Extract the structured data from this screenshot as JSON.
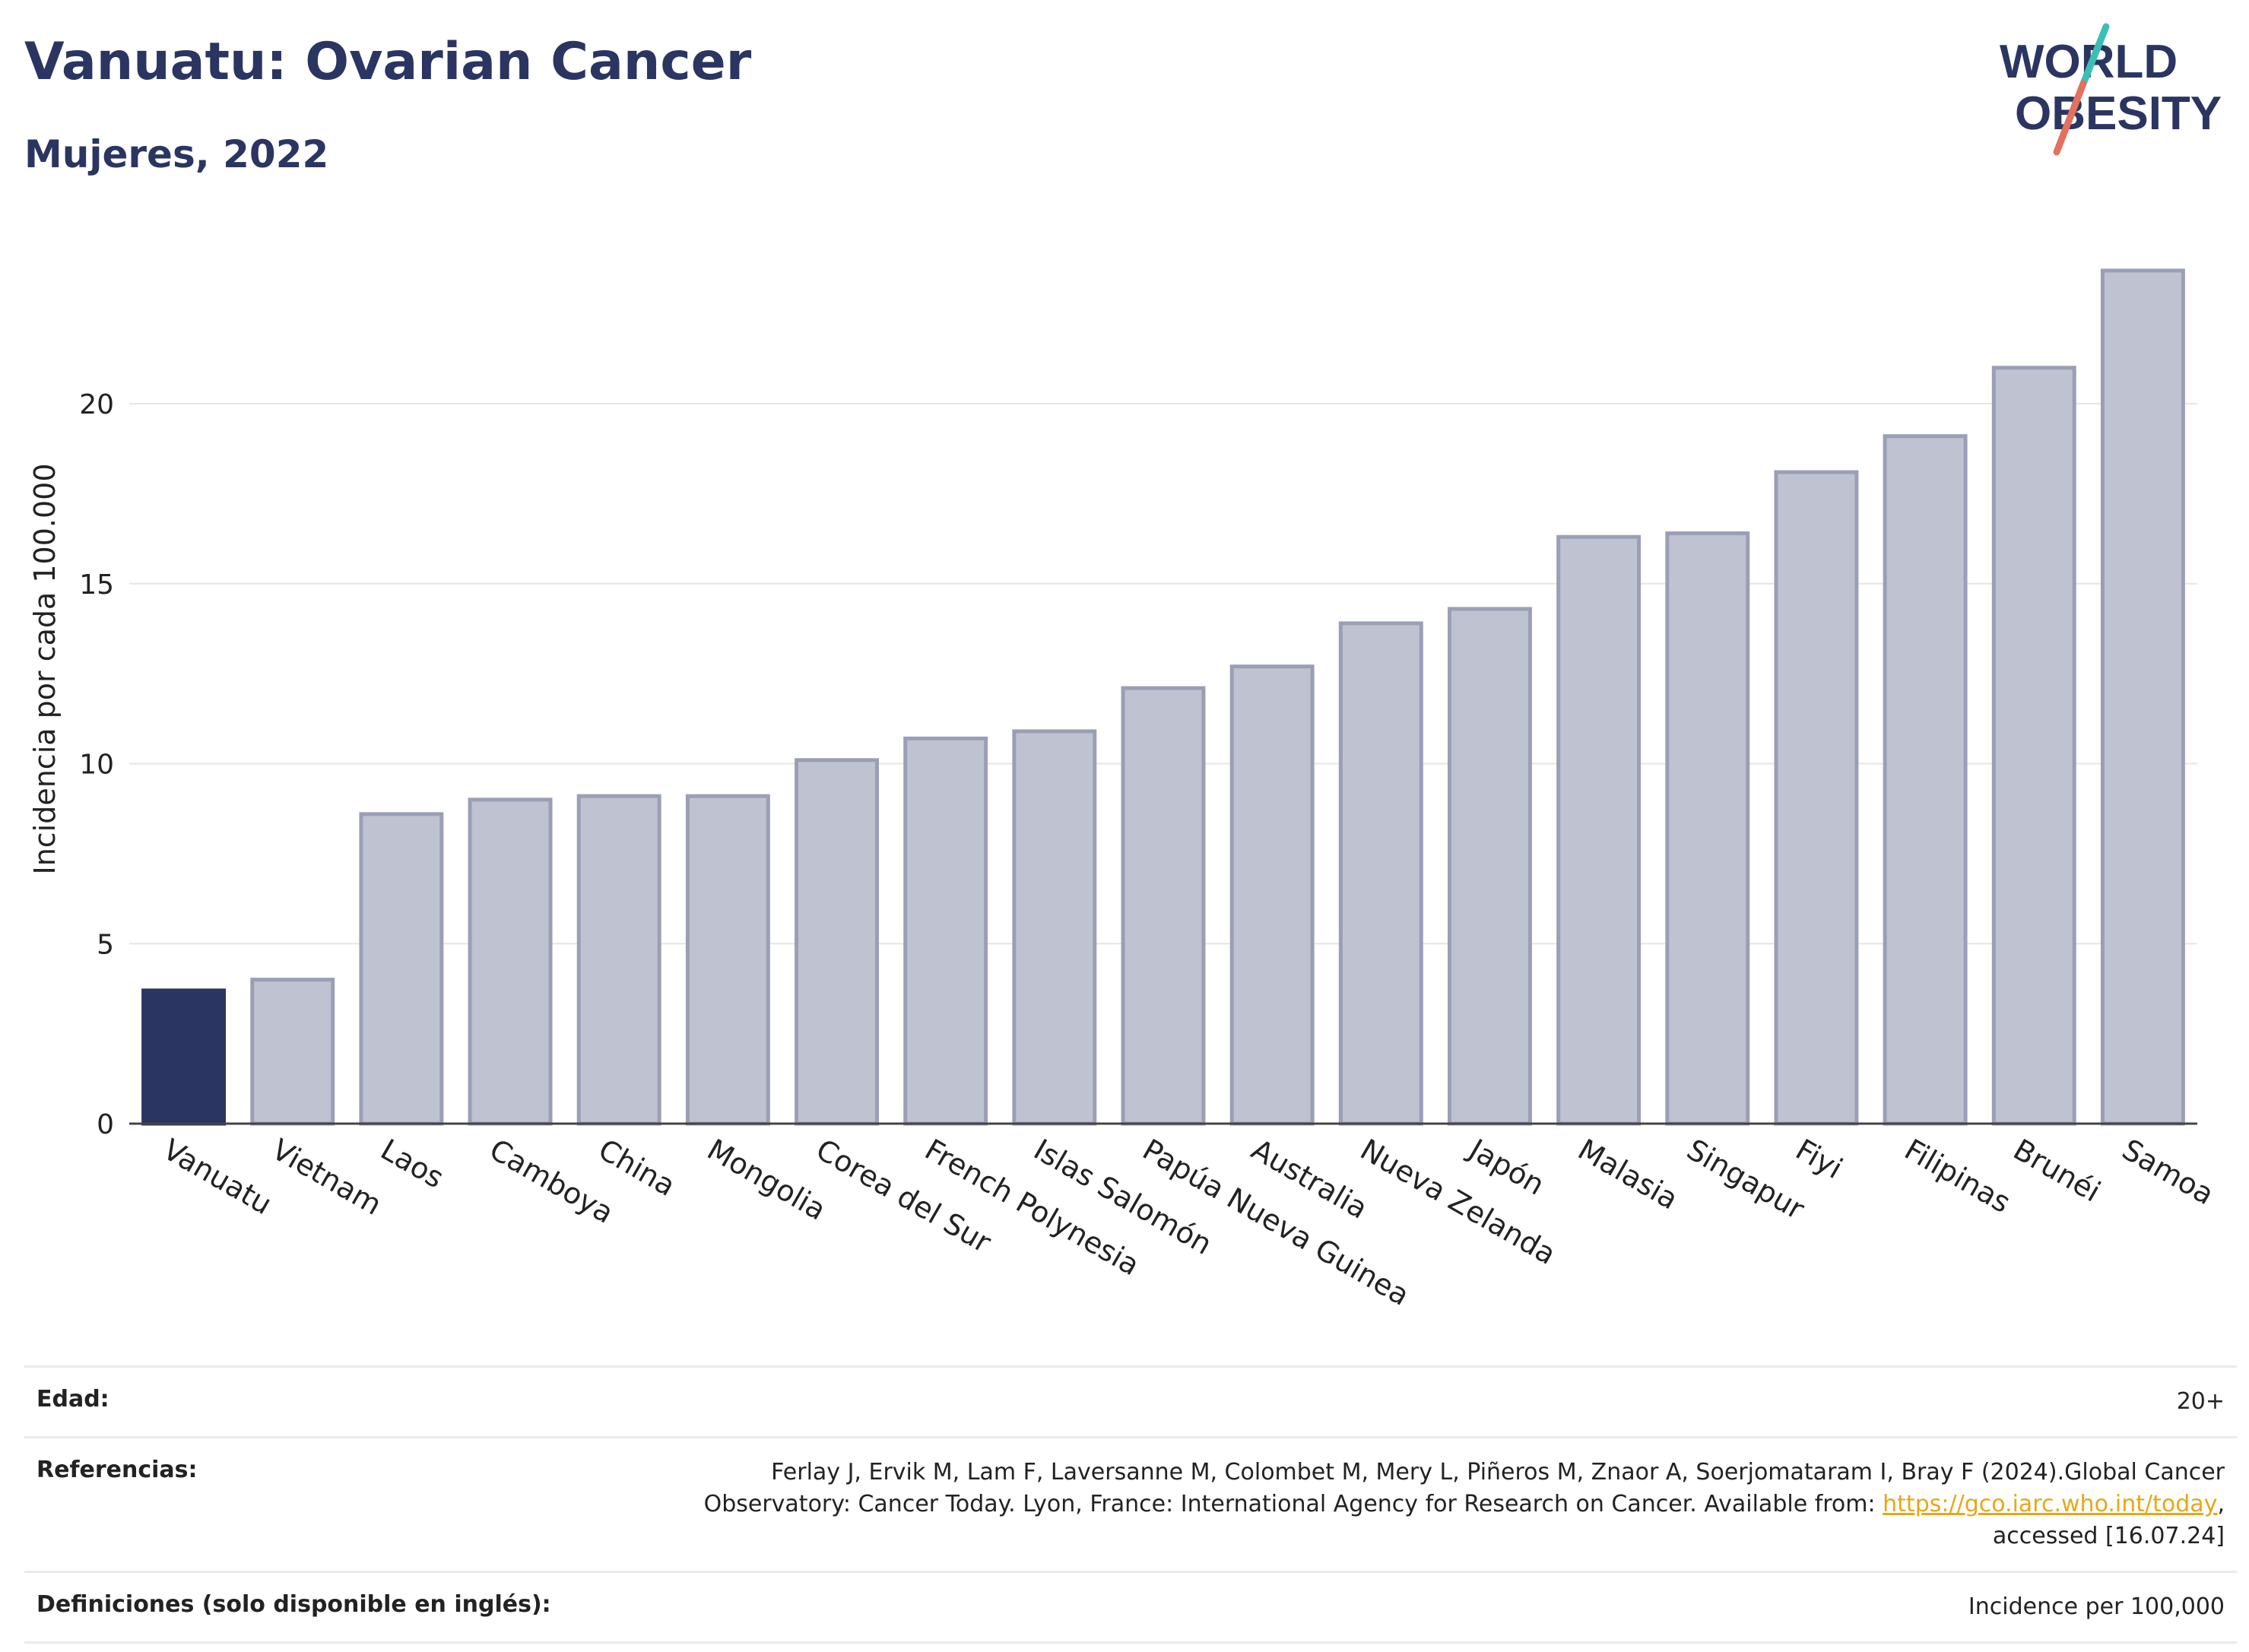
{
  "header": {
    "title": "Vanuatu: Ovarian Cancer",
    "subtitle": "Mujeres, 2022",
    "logo_line1": "WORLD",
    "logo_line2": "OBESITY"
  },
  "colors": {
    "highlight": "#2b3561",
    "bar_fill": "#bfc2d0",
    "bar_stroke": "#9b9fb5",
    "grid": "#e6e6e6",
    "axis": "#444444",
    "logo_teal": "#3bbfb4",
    "logo_coral": "#e4705f",
    "link": "#e6a817"
  },
  "chart_data": {
    "type": "bar",
    "title": "Vanuatu: Ovarian Cancer",
    "subtitle": "Mujeres, 2022",
    "xlabel": "",
    "ylabel": "Incidencia por cada 100.000",
    "ylim": [
      0,
      24.5
    ],
    "yticks": [
      0,
      5,
      10,
      15,
      20
    ],
    "grid": true,
    "highlight_category": "Vanuatu",
    "categories": [
      "Vanuatu",
      "Vietnam",
      "Laos",
      "Camboya",
      "China",
      "Mongolia",
      "Corea del Sur",
      "French Polynesia",
      "Islas Salomón",
      "Papúa Nueva Guinea",
      "Australia",
      "Nueva Zelanda",
      "Japón",
      "Malasia",
      "Singapur",
      "Fiyi",
      "Filipinas",
      "Brunéi",
      "Samoa"
    ],
    "values": [
      3.7,
      4.0,
      8.6,
      9.0,
      9.1,
      9.1,
      10.1,
      10.7,
      10.9,
      12.1,
      12.7,
      13.9,
      14.3,
      16.3,
      16.4,
      18.1,
      19.1,
      21.0,
      23.7
    ]
  },
  "info": {
    "age_label": "Edad:",
    "age_value": "20+",
    "ref_label": "Referencias:",
    "ref_text_1": "Ferlay J, Ervik M, Lam F, Laversanne M, Colombet M, Mery L, Piñeros M, Znaor A, Soerjomataram I, Bray F (2024).Global Cancer Observatory: Cancer Today. Lyon, France: International Agency for Research on Cancer. Available from: ",
    "ref_link": "https://gco.iarc.who.int/today",
    "ref_text_2": ", accessed [16.07.24]",
    "def_label": "Definiciones (solo disponible en inglés):",
    "def_value": "Incidence per 100,000"
  }
}
